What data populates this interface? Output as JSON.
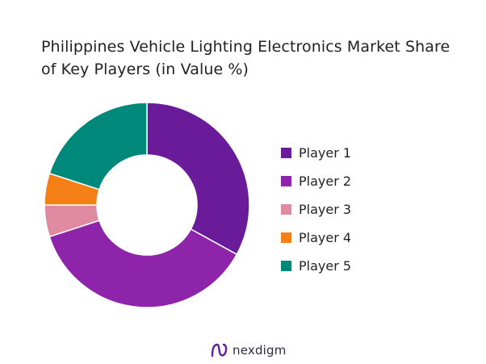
{
  "chart_data": {
    "type": "donut",
    "title_line1": "Philippines Vehicle Lighting Electronics Market Share",
    "title_line2": "of Key Players (in Value %)",
    "series": [
      {
        "name": "Player 1",
        "value": 33,
        "color": "#6a1b9a"
      },
      {
        "name": "Player 2",
        "value": 37,
        "color": "#8e24aa"
      },
      {
        "name": "Player 3",
        "value": 5,
        "color": "#e08aa2"
      },
      {
        "name": "Player 4",
        "value": 5,
        "color": "#f57f17"
      },
      {
        "name": "Player 5",
        "value": 20,
        "color": "#00897b"
      }
    ],
    "start_angle_deg": 0,
    "direction": "clockwise",
    "legend_position": "right"
  },
  "brand": {
    "name": "nexdigm",
    "color": "#6a1b9a"
  }
}
